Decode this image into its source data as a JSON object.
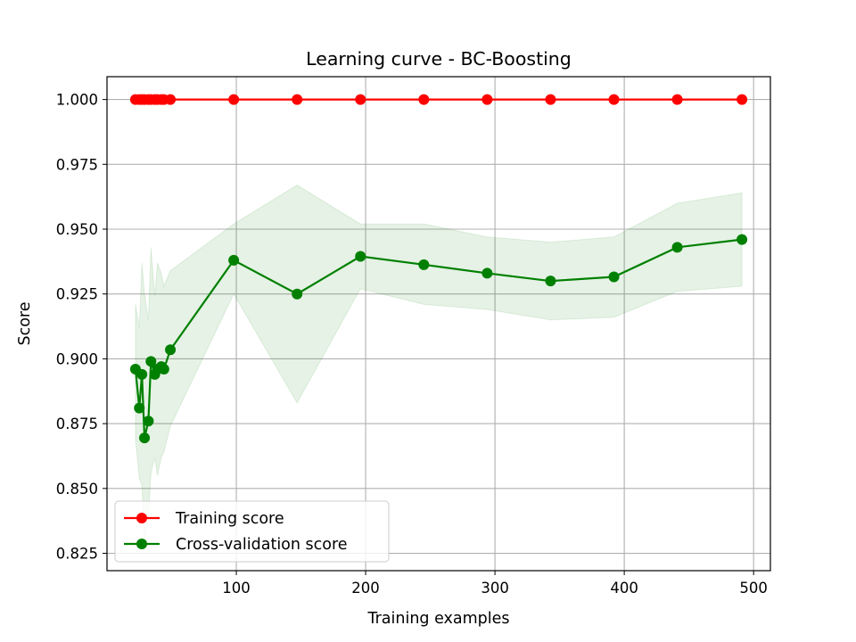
{
  "chart_data": {
    "type": "line",
    "title": "Learning curve - BC-Boosting",
    "xlabel": "Training examples",
    "ylabel": "Score",
    "xlim": [
      0,
      513
    ],
    "ylim": [
      0.8183,
      1.0088
    ],
    "xticks": [
      100,
      200,
      300,
      400,
      500
    ],
    "yticks": [
      0.825,
      0.85,
      0.875,
      0.9,
      0.925,
      0.95,
      0.975,
      1.0
    ],
    "ytick_labels": [
      "0.825",
      "0.850",
      "0.875",
      "0.900",
      "0.925",
      "0.950",
      "0.975",
      "1.000"
    ],
    "grid": true,
    "legend_position": "lower-left",
    "x": [
      22,
      25,
      27,
      29,
      32,
      34,
      37,
      39,
      42,
      44,
      49,
      98,
      147,
      196,
      245,
      294,
      343,
      392,
      441,
      491
    ],
    "series": [
      {
        "name": "Training score",
        "color": "#ff0000",
        "marker": "circle",
        "values": [
          1.0,
          1.0,
          1.0,
          1.0,
          1.0,
          1.0,
          1.0,
          1.0,
          1.0,
          1.0,
          1.0,
          1.0,
          1.0,
          1.0,
          1.0,
          1.0,
          1.0,
          1.0,
          1.0,
          1.0
        ]
      },
      {
        "name": "Cross-validation score",
        "color": "#008000",
        "marker": "circle",
        "band_color": "#008000",
        "values": [
          0.896,
          0.881,
          0.894,
          0.8695,
          0.876,
          0.899,
          0.894,
          0.896,
          0.897,
          0.896,
          0.9035,
          0.938,
          0.925,
          0.9395,
          0.9363,
          0.933,
          0.93,
          0.9316,
          0.943,
          0.946
        ],
        "upper": [
          0.921,
          0.912,
          0.937,
          0.925,
          0.915,
          0.943,
          0.924,
          0.937,
          0.933,
          0.928,
          0.934,
          0.952,
          0.967,
          0.952,
          0.952,
          0.947,
          0.945,
          0.947,
          0.96,
          0.964
        ],
        "lower": [
          0.869,
          0.854,
          0.851,
          0.8295,
          0.838,
          0.856,
          0.862,
          0.855,
          0.862,
          0.864,
          0.874,
          0.925,
          0.883,
          0.927,
          0.921,
          0.919,
          0.915,
          0.916,
          0.926,
          0.928
        ]
      }
    ]
  }
}
